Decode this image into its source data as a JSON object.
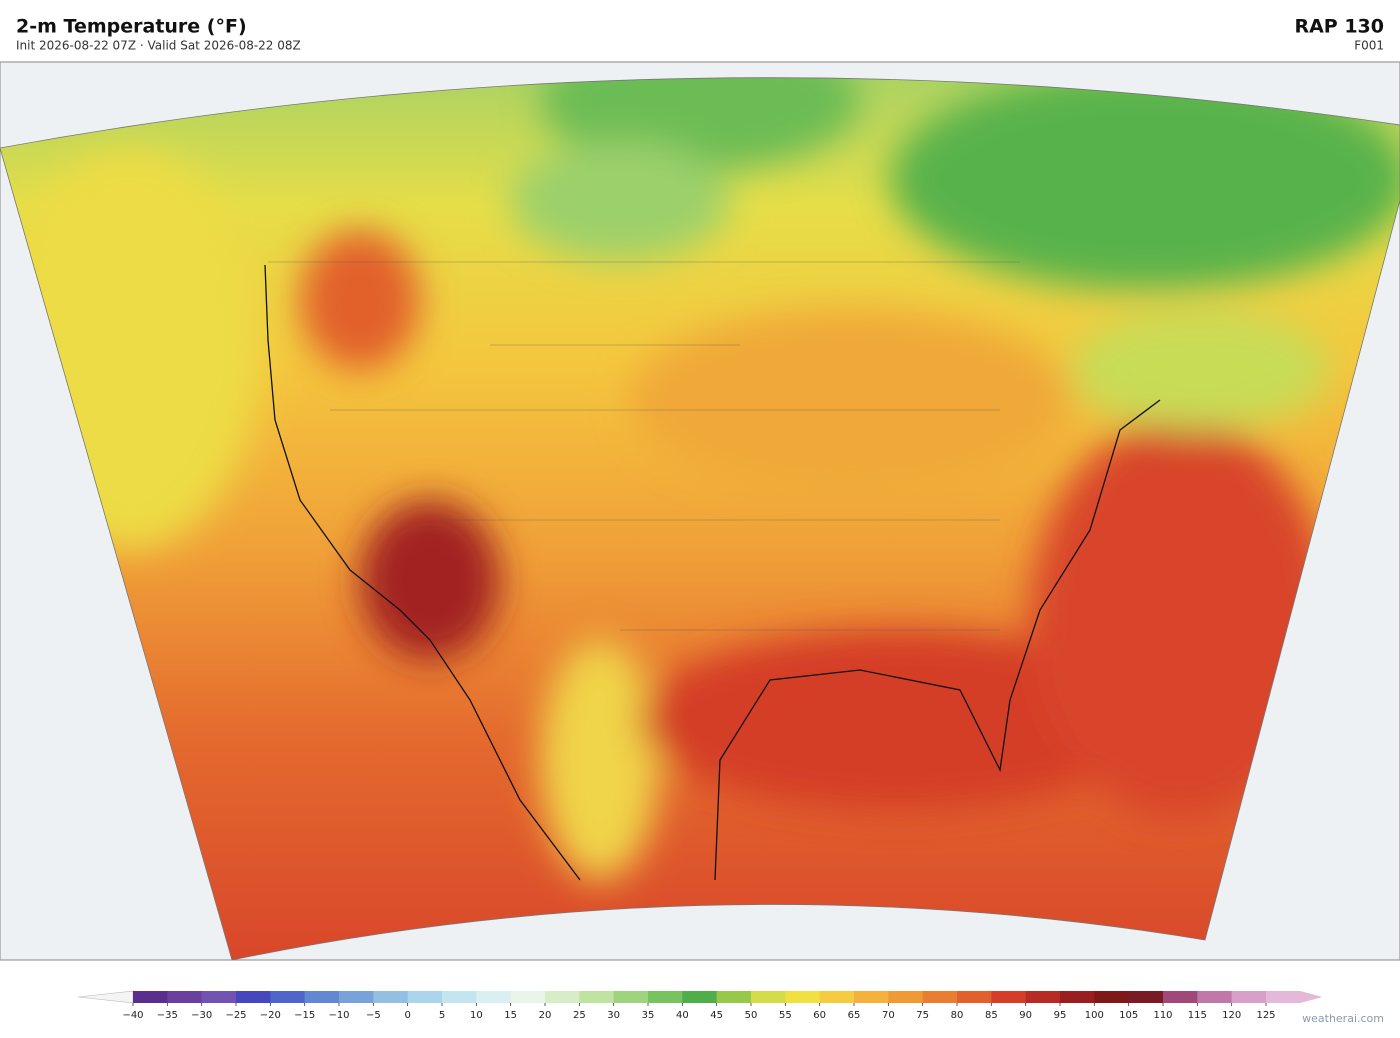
{
  "header": {
    "title": "2-m Temperature  (°F)",
    "subtitle": "Init 2026-08-22 07Z   ·   Valid Sat 2026-08-22 08Z",
    "model": "RAP  130",
    "forecast_hour": "F001"
  },
  "colorbar": {
    "ticks": [
      {
        "value": -40,
        "label": "−40"
      },
      {
        "value": -35,
        "label": "−35"
      },
      {
        "value": -30,
        "label": "−30"
      },
      {
        "value": -25,
        "label": "−25"
      },
      {
        "value": -20,
        "label": "−20"
      },
      {
        "value": -15,
        "label": "−15"
      },
      {
        "value": -10,
        "label": "−10"
      },
      {
        "value": -5,
        "label": "−5"
      },
      0,
      5,
      10,
      15,
      20,
      25,
      30,
      35,
      40,
      45,
      50,
      55,
      60,
      65,
      70,
      75,
      80,
      85,
      90,
      95,
      100,
      105,
      110,
      115,
      120,
      125
    ],
    "colors": [
      "#5a2d8f",
      "#6a3fa0",
      "#7252b2",
      "#4646be",
      "#4e66cc",
      "#6288d4",
      "#78a3da",
      "#92bfe2",
      "#aad5ea",
      "#c4e4f0",
      "#daeff2",
      "#eaf5ea",
      "#d6edc8",
      "#bfe3a0",
      "#9fd47e",
      "#78c260",
      "#4fae4a",
      "#98c84a",
      "#d4dc48",
      "#f0e040",
      "#f5cc40",
      "#f4b23c",
      "#f09a36",
      "#ea7e30",
      "#e2602c",
      "#d43e28",
      "#b82a24",
      "#9a1e20",
      "#801818",
      "#7a1a24",
      "#a04878",
      "#c078a8",
      "#d8a0c8"
    ],
    "under_color": "#f4f4f4",
    "over_color": "#e4b8d8"
  },
  "watermark": "weatherai.com"
}
